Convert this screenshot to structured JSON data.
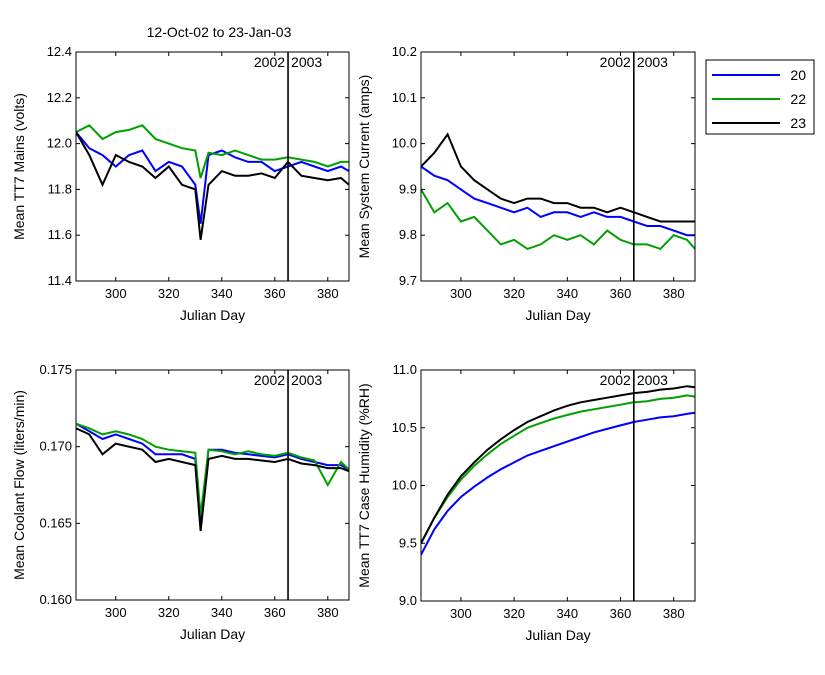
{
  "figure_title": "12-Oct-02 to 23-Jan-03",
  "year_marker": {
    "x": 365,
    "left_label": "2002",
    "right_label": "2003"
  },
  "colors": {
    "20": "#0000ff",
    "22": "#00a000",
    "23": "#000000"
  },
  "chart_data": [
    {
      "type": "line",
      "title": "12-Oct-02 to 23-Jan-03",
      "xlabel": "Julian Day",
      "ylabel": "Mean TT7 Mains  (volts)",
      "xlim": [
        285,
        388
      ],
      "ylim": [
        11.4,
        12.4
      ],
      "xticks": [
        "300",
        "320",
        "340",
        "360",
        "380"
      ],
      "yticks": [
        "11.4",
        "11.6",
        "11.8",
        "12.0",
        "12.2",
        "12.4"
      ],
      "series": [
        {
          "name": "20",
          "x": [
            285,
            290,
            295,
            300,
            305,
            310,
            315,
            320,
            325,
            330,
            332,
            335,
            340,
            345,
            350,
            355,
            360,
            365,
            370,
            375,
            380,
            385,
            388
          ],
          "y": [
            12.05,
            11.98,
            11.95,
            11.9,
            11.95,
            11.97,
            11.88,
            11.92,
            11.9,
            11.82,
            11.65,
            11.95,
            11.97,
            11.94,
            11.92,
            11.92,
            11.88,
            11.9,
            11.92,
            11.9,
            11.88,
            11.9,
            11.88
          ]
        },
        {
          "name": "22",
          "x": [
            285,
            290,
            295,
            300,
            305,
            310,
            315,
            320,
            325,
            330,
            332,
            335,
            340,
            345,
            350,
            355,
            360,
            365,
            370,
            375,
            380,
            385,
            388
          ],
          "y": [
            12.05,
            12.08,
            12.02,
            12.05,
            12.06,
            12.08,
            12.02,
            12.0,
            11.98,
            11.97,
            11.85,
            11.96,
            11.95,
            11.97,
            11.95,
            11.93,
            11.93,
            11.94,
            11.93,
            11.92,
            11.9,
            11.92,
            11.92
          ]
        },
        {
          "name": "23",
          "x": [
            285,
            290,
            295,
            300,
            305,
            310,
            315,
            320,
            325,
            330,
            332,
            335,
            340,
            345,
            350,
            355,
            360,
            365,
            370,
            375,
            380,
            385,
            388
          ],
          "y": [
            12.05,
            11.95,
            11.82,
            11.95,
            11.92,
            11.9,
            11.85,
            11.9,
            11.82,
            11.8,
            11.58,
            11.82,
            11.88,
            11.86,
            11.86,
            11.87,
            11.85,
            11.92,
            11.86,
            11.85,
            11.84,
            11.85,
            11.82
          ]
        }
      ]
    },
    {
      "type": "line",
      "xlabel": "Julian Day",
      "ylabel": "Mean System Current (amps)",
      "xlim": [
        285,
        388
      ],
      "ylim": [
        9.7,
        10.2
      ],
      "xticks": [
        "300",
        "320",
        "340",
        "360",
        "380"
      ],
      "yticks": [
        "9.7",
        "9.8",
        "9.9",
        "10.0",
        "10.1",
        "10.2"
      ],
      "series": [
        {
          "name": "20",
          "x": [
            285,
            290,
            295,
            300,
            305,
            310,
            315,
            320,
            325,
            330,
            335,
            340,
            345,
            350,
            355,
            360,
            365,
            370,
            375,
            380,
            385,
            388
          ],
          "y": [
            9.95,
            9.93,
            9.92,
            9.9,
            9.88,
            9.87,
            9.86,
            9.85,
            9.86,
            9.84,
            9.85,
            9.85,
            9.84,
            9.85,
            9.84,
            9.84,
            9.83,
            9.82,
            9.82,
            9.81,
            9.8,
            9.8
          ]
        },
        {
          "name": "22",
          "x": [
            285,
            290,
            295,
            300,
            305,
            310,
            315,
            320,
            325,
            330,
            335,
            340,
            345,
            350,
            355,
            360,
            365,
            370,
            375,
            380,
            385,
            388
          ],
          "y": [
            9.9,
            9.85,
            9.87,
            9.83,
            9.84,
            9.81,
            9.78,
            9.79,
            9.77,
            9.78,
            9.8,
            9.79,
            9.8,
            9.78,
            9.81,
            9.79,
            9.78,
            9.78,
            9.77,
            9.8,
            9.79,
            9.77
          ]
        },
        {
          "name": "23",
          "x": [
            285,
            290,
            295,
            300,
            305,
            310,
            315,
            320,
            325,
            330,
            335,
            340,
            345,
            350,
            355,
            360,
            365,
            370,
            375,
            380,
            385,
            388
          ],
          "y": [
            9.95,
            9.98,
            10.02,
            9.95,
            9.92,
            9.9,
            9.88,
            9.87,
            9.88,
            9.88,
            9.87,
            9.87,
            9.86,
            9.86,
            9.85,
            9.86,
            9.85,
            9.84,
            9.83,
            9.83,
            9.83,
            9.83
          ]
        }
      ]
    },
    {
      "type": "line",
      "xlabel": "Julian Day",
      "ylabel": "Mean Coolant Flow (liters/min)",
      "xlim": [
        285,
        388
      ],
      "ylim": [
        0.16,
        0.175
      ],
      "xticks": [
        "300",
        "320",
        "340",
        "360",
        "380"
      ],
      "yticks": [
        "0.160",
        "0.165",
        "0.170",
        "0.175"
      ],
      "series": [
        {
          "name": "20",
          "x": [
            285,
            290,
            295,
            300,
            305,
            310,
            315,
            320,
            325,
            330,
            332,
            335,
            340,
            345,
            350,
            355,
            360,
            365,
            370,
            375,
            380,
            385,
            388
          ],
          "y": [
            0.1715,
            0.171,
            0.1705,
            0.1708,
            0.1705,
            0.1702,
            0.1695,
            0.1695,
            0.1695,
            0.1692,
            0.165,
            0.1698,
            0.1698,
            0.1696,
            0.1695,
            0.1694,
            0.1693,
            0.1695,
            0.1692,
            0.169,
            0.1688,
            0.1688,
            0.1685
          ]
        },
        {
          "name": "22",
          "x": [
            285,
            290,
            295,
            300,
            305,
            310,
            315,
            320,
            325,
            330,
            332,
            335,
            340,
            345,
            350,
            355,
            360,
            365,
            370,
            375,
            380,
            385,
            388
          ],
          "y": [
            0.1715,
            0.1712,
            0.1708,
            0.171,
            0.1708,
            0.1705,
            0.17,
            0.1698,
            0.1697,
            0.1696,
            0.1655,
            0.1698,
            0.1697,
            0.1695,
            0.1697,
            0.1695,
            0.1694,
            0.1696,
            0.1693,
            0.1691,
            0.1675,
            0.169,
            0.1685
          ]
        },
        {
          "name": "23",
          "x": [
            285,
            290,
            295,
            300,
            305,
            310,
            315,
            320,
            325,
            330,
            332,
            335,
            340,
            345,
            350,
            355,
            360,
            365,
            370,
            375,
            380,
            385,
            388
          ],
          "y": [
            0.1712,
            0.1708,
            0.1695,
            0.1702,
            0.17,
            0.1698,
            0.169,
            0.1692,
            0.169,
            0.1688,
            0.1645,
            0.1692,
            0.1694,
            0.1692,
            0.1692,
            0.1691,
            0.169,
            0.1692,
            0.1689,
            0.1688,
            0.1686,
            0.1686,
            0.1684
          ]
        }
      ]
    },
    {
      "type": "line",
      "xlabel": "Julian Day",
      "ylabel": "Mean TT7 Case Humidity (%RH)",
      "xlim": [
        285,
        388
      ],
      "ylim": [
        9.0,
        11.0
      ],
      "xticks": [
        "300",
        "320",
        "340",
        "360",
        "380"
      ],
      "yticks": [
        "9.0",
        "9.5",
        "10.0",
        "10.5",
        "11.0"
      ],
      "series": [
        {
          "name": "20",
          "x": [
            285,
            290,
            295,
            300,
            305,
            310,
            315,
            320,
            325,
            330,
            335,
            340,
            345,
            350,
            355,
            360,
            365,
            370,
            375,
            380,
            385,
            388
          ],
          "y": [
            9.4,
            9.62,
            9.78,
            9.9,
            9.99,
            10.07,
            10.14,
            10.2,
            10.26,
            10.3,
            10.34,
            10.38,
            10.42,
            10.46,
            10.49,
            10.52,
            10.55,
            10.57,
            10.59,
            10.6,
            10.62,
            10.63
          ]
        },
        {
          "name": "22",
          "x": [
            285,
            290,
            295,
            300,
            305,
            310,
            315,
            320,
            325,
            330,
            335,
            340,
            345,
            350,
            355,
            360,
            365,
            370,
            375,
            380,
            385,
            388
          ],
          "y": [
            9.5,
            9.72,
            9.9,
            10.05,
            10.17,
            10.27,
            10.36,
            10.43,
            10.5,
            10.54,
            10.58,
            10.61,
            10.64,
            10.66,
            10.68,
            10.7,
            10.72,
            10.73,
            10.75,
            10.76,
            10.78,
            10.77
          ]
        },
        {
          "name": "23",
          "x": [
            285,
            290,
            295,
            300,
            305,
            310,
            315,
            320,
            325,
            330,
            335,
            340,
            345,
            350,
            355,
            360,
            365,
            370,
            375,
            380,
            385,
            388
          ],
          "y": [
            9.5,
            9.72,
            9.92,
            10.08,
            10.2,
            10.31,
            10.4,
            10.48,
            10.55,
            10.6,
            10.65,
            10.69,
            10.72,
            10.74,
            10.76,
            10.78,
            10.8,
            10.81,
            10.83,
            10.84,
            10.86,
            10.85
          ]
        }
      ]
    }
  ],
  "legend": {
    "entries": [
      "20",
      "22",
      "23"
    ],
    "placement": "right of top-right panel"
  }
}
